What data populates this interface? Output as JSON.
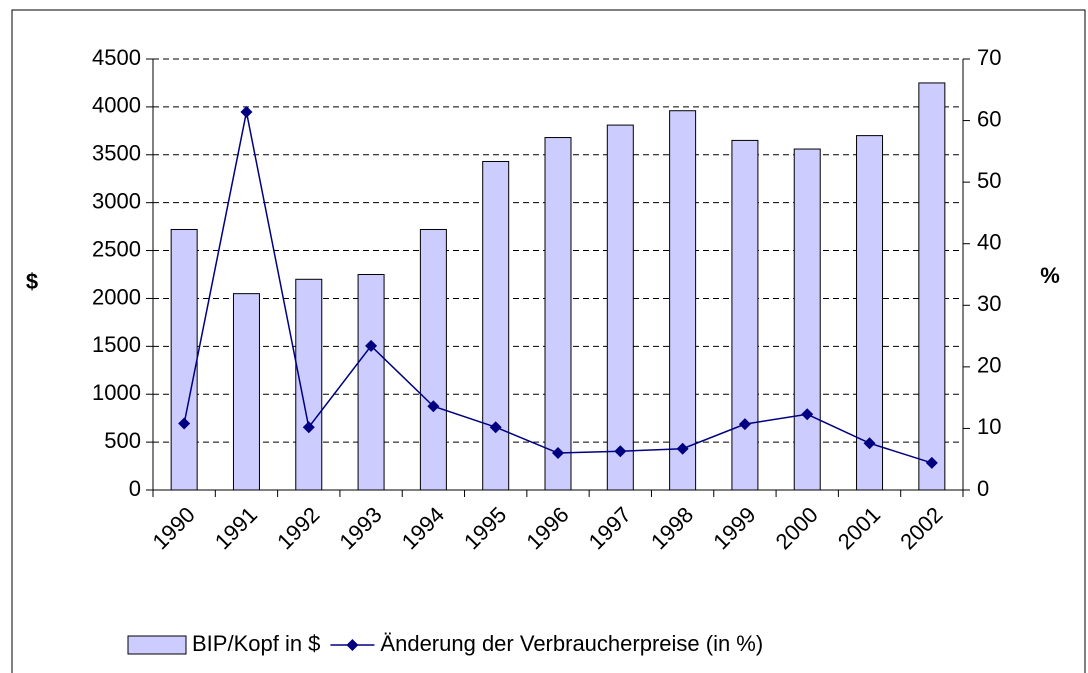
{
  "chart_data": {
    "type": "bar",
    "categories": [
      "1990",
      "1991",
      "1992",
      "1993",
      "1994",
      "1995",
      "1996",
      "1997",
      "1998",
      "1999",
      "2000",
      "2001",
      "2002"
    ],
    "series": [
      {
        "name": "BIP/Kopf in $",
        "type": "bar",
        "color": "#ccccff",
        "values": [
          2720,
          2050,
          2200,
          2250,
          2720,
          3430,
          3680,
          3810,
          3960,
          3650,
          3560,
          3700,
          4250
        ]
      },
      {
        "name": "Änderung der Verbraucherpreise (in %)",
        "type": "line",
        "color": "#000080",
        "axis": "y2",
        "values": [
          10.8,
          61.4,
          10.2,
          23.4,
          13.6,
          10.2,
          6.0,
          6.3,
          6.7,
          10.7,
          12.3,
          7.6,
          4.4
        ]
      }
    ],
    "y_label": "$",
    "y2_label": "%",
    "ylim": [
      0,
      4500
    ],
    "yticks": [
      0,
      500,
      1000,
      1500,
      2000,
      2500,
      3000,
      3500,
      4000,
      4500
    ],
    "y2lim": [
      0,
      70
    ],
    "y2ticks": [
      0,
      10,
      20,
      30,
      40,
      50,
      60,
      70
    ],
    "grid": true,
    "legend": "bottom"
  }
}
